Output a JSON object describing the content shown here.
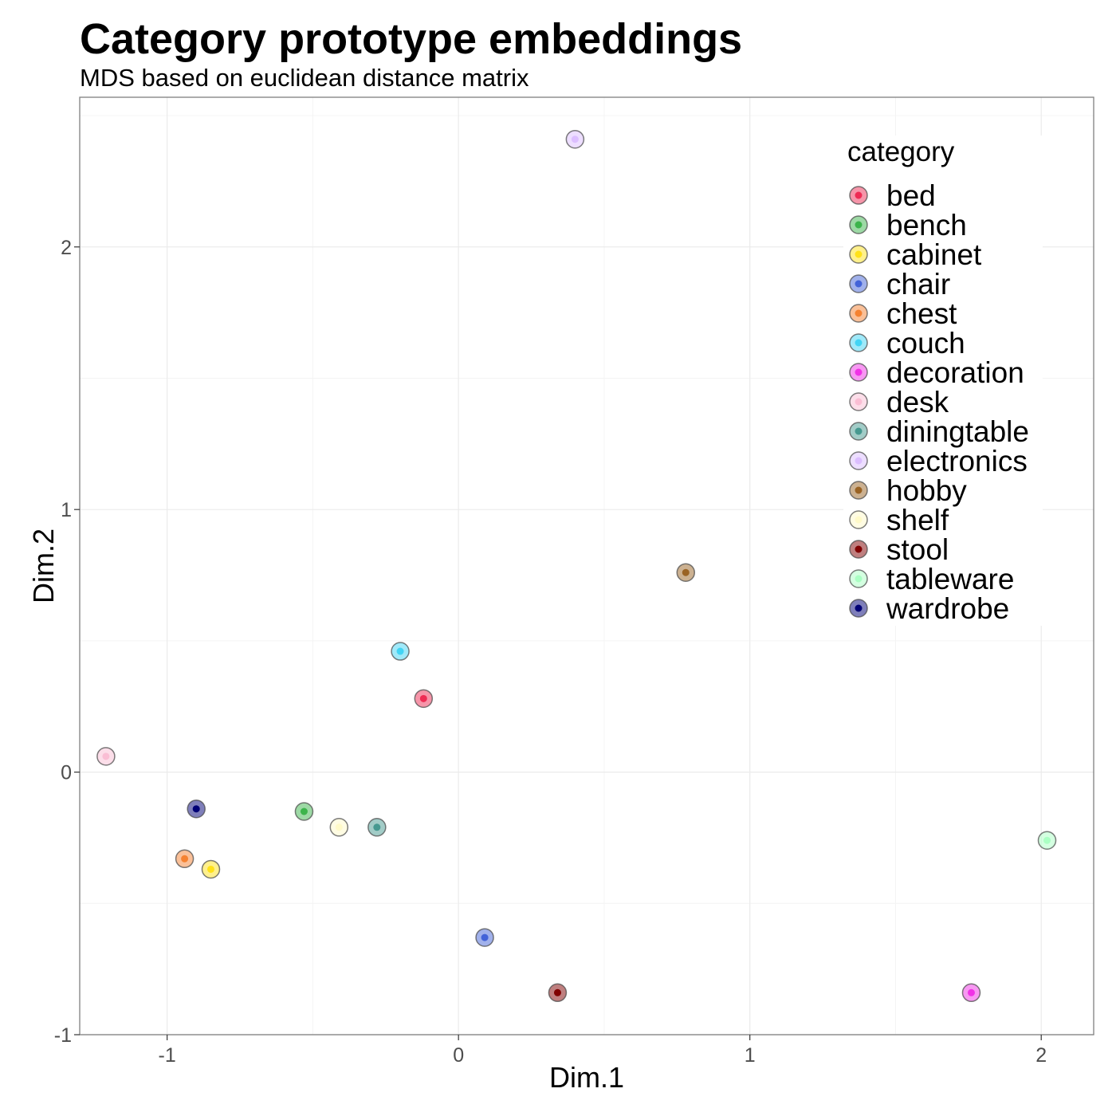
{
  "chart_data": {
    "type": "scatter",
    "title": "Category prototype embeddings",
    "subtitle": "MDS based on euclidean distance matrix",
    "xlabel": "Dim.1",
    "ylabel": "Dim.2",
    "xlim": [
      -1.3,
      2.18
    ],
    "ylim": [
      -1.0,
      2.57
    ],
    "xticks": [
      -1,
      0,
      1,
      2
    ],
    "yticks": [
      -1,
      0,
      1,
      2
    ],
    "grid": true,
    "legend_title": "category",
    "legend_position": "top-right",
    "points": [
      {
        "category": "bed",
        "x": -0.12,
        "y": 0.28,
        "color": "#ee2c54"
      },
      {
        "category": "bench",
        "x": -0.53,
        "y": -0.15,
        "color": "#3cb44b"
      },
      {
        "category": "cabinet",
        "x": -0.85,
        "y": -0.37,
        "color": "#ffe119"
      },
      {
        "category": "chair",
        "x": 0.09,
        "y": -0.63,
        "color": "#4363d8"
      },
      {
        "category": "chest",
        "x": -0.94,
        "y": -0.33,
        "color": "#f58231"
      },
      {
        "category": "couch",
        "x": -0.2,
        "y": 0.46,
        "color": "#42d4f4"
      },
      {
        "category": "decoration",
        "x": 1.76,
        "y": -0.84,
        "color": "#f032e6"
      },
      {
        "category": "desk",
        "x": -1.21,
        "y": 0.06,
        "color": "#fabed4"
      },
      {
        "category": "diningtable",
        "x": -0.28,
        "y": -0.21,
        "color": "#469990"
      },
      {
        "category": "electronics",
        "x": 0.4,
        "y": 2.41,
        "color": "#dcbeff"
      },
      {
        "category": "hobby",
        "x": 0.78,
        "y": 0.76,
        "color": "#9a6324"
      },
      {
        "category": "shelf",
        "x": -0.41,
        "y": -0.21,
        "color": "#fffac8"
      },
      {
        "category": "stool",
        "x": 0.34,
        "y": -0.84,
        "color": "#800000"
      },
      {
        "category": "tableware",
        "x": 2.02,
        "y": -0.26,
        "color": "#aaffc3"
      },
      {
        "category": "wardrobe",
        "x": -0.9,
        "y": -0.14,
        "color": "#000075"
      }
    ]
  }
}
